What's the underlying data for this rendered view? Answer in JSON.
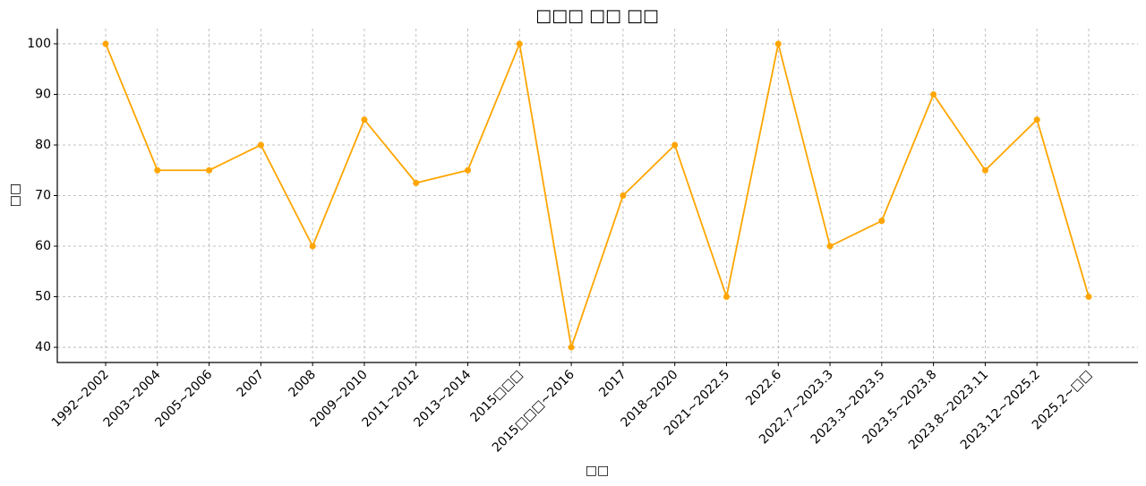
{
  "chart_data": {
    "type": "line",
    "title": "□□□ □□ □□",
    "x_label": "□□",
    "y_label": "□□",
    "categories": [
      "1992~2002",
      "2003~2004",
      "2005~2006",
      "2007",
      "2008",
      "2009~2010",
      "2011~2012",
      "2013~2014",
      "2015□□□",
      "2015□□□~2016",
      "2017",
      "2018~2020",
      "2021~2022.5",
      "2022.6",
      "2022.7~2023.3",
      "2023.3~2023.5",
      "2023.5~2023.8",
      "2023.8~2023.11",
      "2023.12~2025.2",
      "2025.2~□□"
    ],
    "values": [
      100,
      75,
      75,
      80,
      60,
      85,
      72.5,
      75,
      100,
      40,
      70,
      80,
      50,
      100,
      60,
      65,
      90,
      75,
      85,
      50
    ],
    "color": "#ffa500",
    "ylim": [
      37,
      103
    ],
    "yticks": [
      40,
      50,
      60,
      70,
      80,
      90,
      100
    ],
    "grid": true
  }
}
